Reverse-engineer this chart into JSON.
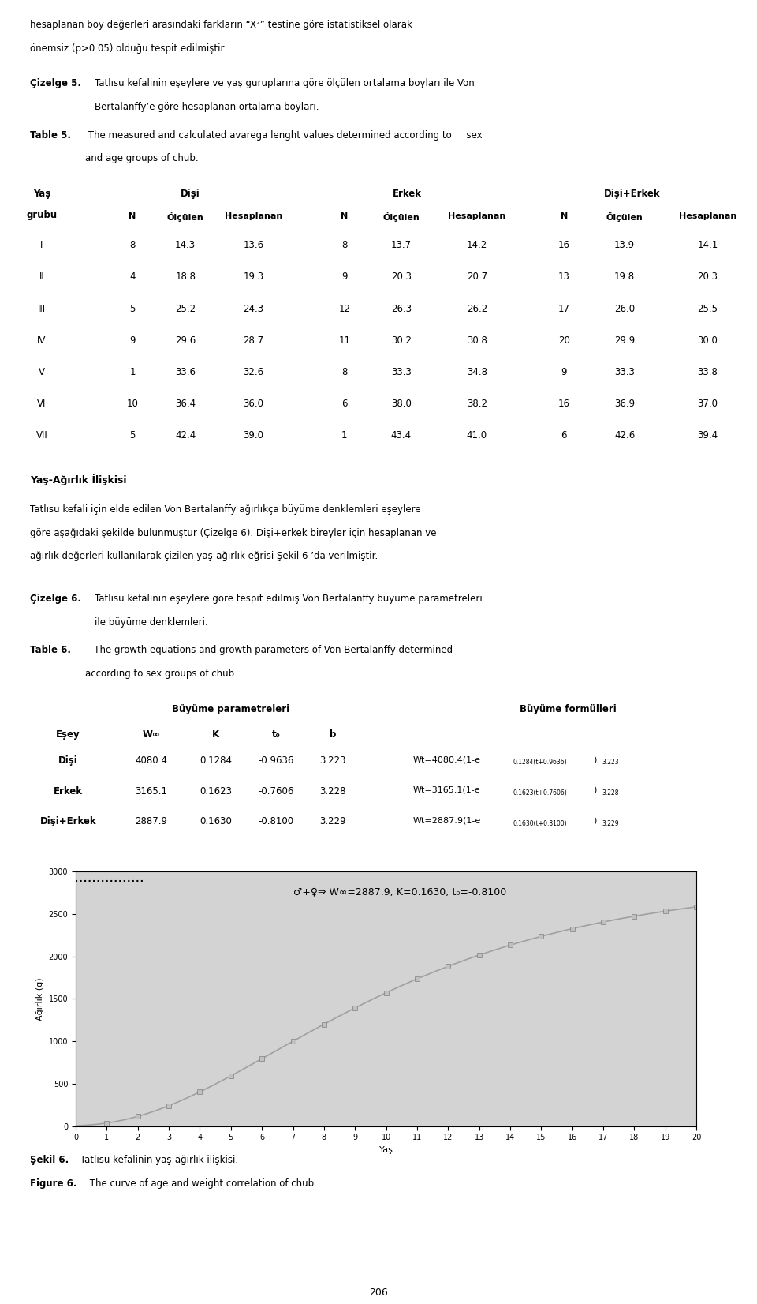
{
  "page_width": 9.6,
  "page_height": 16.52,
  "bg_color": "#ffffff",
  "top_line1": "hesaplanan boy değerleri arasındaki farkların “X²” testine göre istatistiksel olarak",
  "top_line2": "önemsiz (p>0.05) olduğu tespit edilmiştir.",
  "cizelge5_label": "Çizelge 5.",
  "cizelge5_text1": "Tatlısu kefalinin eşeylere ve yaş guruplarına göre ölçülen ortalama boyları ile Von",
  "cizelge5_text2": "Bertalanffy’e göre hesaplanan ortalama boyları.",
  "table5_bold": "Table 5.",
  "table5_text1": " The measured and calculated avarega lenght values determined according to     sex",
  "table5_text2": "and age groups of chub.",
  "table5_group_headers": [
    "Dişi",
    "Erkek",
    "Dişi+Erkek"
  ],
  "table5_rows": [
    [
      "I",
      "8",
      "14.3",
      "13.6",
      "8",
      "13.7",
      "14.2",
      "16",
      "13.9",
      "14.1"
    ],
    [
      "II",
      "4",
      "18.8",
      "19.3",
      "9",
      "20.3",
      "20.7",
      "13",
      "19.8",
      "20.3"
    ],
    [
      "III",
      "5",
      "25.2",
      "24.3",
      "12",
      "26.3",
      "26.2",
      "17",
      "26.0",
      "25.5"
    ],
    [
      "IV",
      "9",
      "29.6",
      "28.7",
      "11",
      "30.2",
      "30.8",
      "20",
      "29.9",
      "30.0"
    ],
    [
      "V",
      "1",
      "33.6",
      "32.6",
      "8",
      "33.3",
      "34.8",
      "9",
      "33.3",
      "33.8"
    ],
    [
      "VI",
      "10",
      "36.4",
      "36.0",
      "6",
      "38.0",
      "38.2",
      "16",
      "36.9",
      "37.0"
    ],
    [
      "VII",
      "5",
      "42.4",
      "39.0",
      "1",
      "43.4",
      "41.0",
      "6",
      "42.6",
      "39.4"
    ]
  ],
  "yas_agirlik_header": "Yaş-Ağırlık İlişkisi",
  "para_lines": [
    "Tatlısu kefali için elde edilen Von Bertalanffy ağırlıkça büyüme denklemleri eşeylere",
    "göre aşağıdaki şekilde bulunmuştur (Çizelge 6). Dişi+erkek bireyler için hesaplanan ve",
    "ağırlık değerleri kullanılarak çizilen yaş-ağırlık eğrisi Şekil 6 ’da verilmiştir."
  ],
  "cizelge6_label": "Çizelge 6.",
  "cizelge6_text1": "Tatlısu kefalinin eşeylere göre tespit edilmiş Von Bertalanffy büyüme parametreleri",
  "cizelge6_text2": "ile büyüme denklemleri.",
  "table6_bold": "Table 6.",
  "table6_text1": "   The growth equations and growth parameters of Von Bertalanffy determined",
  "table6_text2": "according to sex groups of chub.",
  "table6_param_header": "Büyüme parametreleri",
  "table6_formula_header": "Büyüme formülleri",
  "table6_subheaders": [
    "Eşey",
    "W∞",
    "K",
    "t₀",
    "b"
  ],
  "table6_rows": [
    [
      "Dişi",
      "4080.4",
      "0.1284",
      "-0.9636",
      "3.223",
      "Wt=4080.4(1-e",
      "0.1284(t+0.9636)",
      "3.223"
    ],
    [
      "Erkek",
      "3165.1",
      "0.1623",
      "-0.7606",
      "3.228",
      "Wt=3165.1(1-e",
      "0.1623(t+0.7606)",
      "3.228"
    ],
    [
      "Dişi+Erkek",
      "2887.9",
      "0.1630",
      "-0.8100",
      "3.229",
      "Wt=2887.9(1-e",
      "0.1630(t+0.8100)",
      "3.229"
    ]
  ],
  "chart_title": "♂+♀⇒ W∞=2887.9; K=0.1630; t₀=-0.8100",
  "chart_xlabel": "Yaş",
  "chart_ylabel": "Ağırlık (g)",
  "chart_ylim": [
    0,
    3000
  ],
  "chart_xlim": [
    0,
    20
  ],
  "chart_xticks": [
    0,
    1,
    2,
    3,
    4,
    5,
    6,
    7,
    8,
    9,
    10,
    11,
    12,
    13,
    14,
    15,
    16,
    17,
    18,
    19,
    20
  ],
  "chart_yticks": [
    0,
    500,
    1000,
    1500,
    2000,
    2500,
    3000
  ],
  "sekil6_bold": "Şekil 6.",
  "sekil6_rest": " Tatlısu kefalinin yaş-ağırlık ilişkisi.",
  "figure6_bold": "Figure 6.",
  "figure6_rest": " The curve of age and weight correlation of chub.",
  "page_num": "206"
}
